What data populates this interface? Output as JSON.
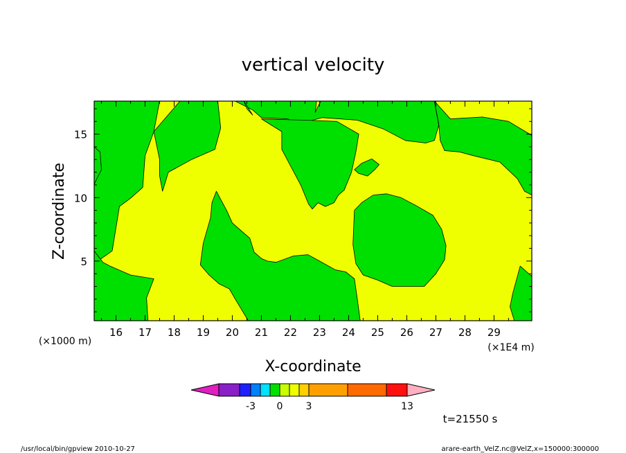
{
  "chart_data": {
    "type": "contour",
    "title": "vertical velocity",
    "xlabel": "X-coordinate",
    "ylabel": "Z-coordinate",
    "x_unit_left": "(×1000 m)",
    "x_unit_right": "(×1E4 m)",
    "xlim": [
      15.25,
      30.3
    ],
    "ylim": [
      0.3,
      17.6
    ],
    "x_ticks": [
      16,
      17,
      18,
      19,
      20,
      21,
      22,
      23,
      24,
      25,
      26,
      27,
      28,
      29
    ],
    "y_ticks": [
      5,
      10,
      15
    ],
    "time_label": "t=21550 s",
    "region_colors": {
      "negative": "#00e000",
      "positive": "#f0ff00"
    },
    "regions": [
      {
        "sign": "negative",
        "points": [
          [
            15.25,
            17.6
          ],
          [
            17.5,
            17.6
          ],
          [
            17.3,
            15.2
          ],
          [
            17.0,
            13.3
          ],
          [
            16.92,
            10.8
          ],
          [
            16.5,
            9.95
          ],
          [
            16.12,
            9.3
          ],
          [
            15.87,
            5.8
          ],
          [
            15.25,
            4.8
          ]
        ]
      },
      {
        "sign": "negative",
        "points": [
          [
            15.25,
            14.0
          ],
          [
            15.45,
            13.6
          ],
          [
            15.5,
            12.2
          ],
          [
            15.28,
            11.2
          ],
          [
            15.25,
            11.0
          ]
        ]
      },
      {
        "sign": "negative",
        "points": [
          [
            15.25,
            5.8
          ],
          [
            15.55,
            4.9
          ],
          [
            15.8,
            4.6
          ],
          [
            16.5,
            3.9
          ],
          [
            17.3,
            3.6
          ],
          [
            17.05,
            2.1
          ],
          [
            17.1,
            0.3
          ],
          [
            15.25,
            0.3
          ]
        ]
      },
      {
        "sign": "negative",
        "points": [
          [
            18.2,
            17.6
          ],
          [
            19.5,
            17.6
          ],
          [
            19.6,
            15.5
          ],
          [
            19.4,
            13.8
          ],
          [
            18.6,
            13.0
          ],
          [
            17.8,
            12.0
          ],
          [
            17.6,
            10.5
          ],
          [
            17.5,
            11.7
          ],
          [
            17.5,
            13.0
          ],
          [
            17.3,
            15.2
          ]
        ]
      },
      {
        "sign": "negative",
        "points": [
          [
            20.1,
            17.6
          ],
          [
            22.9,
            17.6
          ],
          [
            22.85,
            16.7
          ],
          [
            22.95,
            17.2
          ],
          [
            23.05,
            17.6
          ],
          [
            26.95,
            17.6
          ],
          [
            27.1,
            15.7
          ],
          [
            26.95,
            14.5
          ],
          [
            26.65,
            14.3
          ],
          [
            25.95,
            14.5
          ],
          [
            25.2,
            15.4
          ],
          [
            24.3,
            16.1
          ],
          [
            23.1,
            16.3
          ],
          [
            22.6,
            16.0
          ],
          [
            22.4,
            15.8
          ],
          [
            21.9,
            16.2
          ],
          [
            21.0,
            16.3
          ],
          [
            20.7,
            16.9
          ]
        ]
      },
      {
        "sign": "negative",
        "points": [
          [
            21.0,
            16.2
          ],
          [
            21.7,
            15.2
          ],
          [
            21.7,
            13.8
          ],
          [
            22.0,
            12.5
          ],
          [
            22.35,
            11.0
          ],
          [
            22.62,
            9.5
          ],
          [
            22.75,
            9.1
          ],
          [
            22.95,
            9.6
          ],
          [
            23.2,
            9.3
          ],
          [
            23.5,
            9.6
          ],
          [
            23.65,
            10.2
          ],
          [
            23.85,
            10.6
          ],
          [
            24.1,
            12.0
          ],
          [
            24.25,
            13.6
          ],
          [
            24.35,
            15.0
          ],
          [
            23.6,
            16.0
          ],
          [
            22.5,
            16.1
          ]
        ]
      },
      {
        "sign": "negative",
        "points": [
          [
            24.35,
            11.9
          ],
          [
            24.65,
            11.7
          ],
          [
            24.9,
            12.2
          ],
          [
            25.05,
            12.6
          ],
          [
            24.8,
            13.05
          ],
          [
            24.45,
            12.7
          ],
          [
            24.2,
            12.2
          ]
        ]
      },
      {
        "sign": "negative",
        "points": [
          [
            20.4,
            17.6
          ],
          [
            20.5,
            17.0
          ],
          [
            20.7,
            16.5
          ]
        ]
      },
      {
        "sign": "negative",
        "points": [
          [
            19.45,
            10.5
          ],
          [
            19.8,
            9.0
          ],
          [
            20.0,
            8.0
          ],
          [
            20.6,
            6.8
          ],
          [
            20.75,
            5.7
          ],
          [
            21.0,
            5.2
          ],
          [
            21.2,
            5.0
          ],
          [
            21.5,
            4.9
          ],
          [
            22.1,
            5.4
          ],
          [
            22.6,
            5.5
          ],
          [
            23.0,
            5.0
          ],
          [
            23.55,
            4.3
          ],
          [
            23.9,
            4.15
          ],
          [
            24.2,
            3.6
          ],
          [
            24.3,
            2.0
          ],
          [
            24.4,
            0.3
          ],
          [
            20.55,
            0.3
          ],
          [
            20.1,
            2.0
          ],
          [
            19.9,
            2.8
          ],
          [
            19.55,
            3.2
          ],
          [
            19.2,
            3.9
          ],
          [
            18.9,
            4.7
          ],
          [
            19.0,
            6.4
          ],
          [
            19.25,
            8.4
          ],
          [
            19.3,
            9.6
          ]
        ]
      },
      {
        "sign": "negative",
        "points": [
          [
            24.2,
            9.0
          ],
          [
            24.45,
            9.6
          ],
          [
            24.85,
            10.2
          ],
          [
            25.3,
            10.3
          ],
          [
            25.8,
            10.0
          ],
          [
            26.3,
            9.4
          ],
          [
            26.9,
            8.6
          ],
          [
            27.2,
            7.5
          ],
          [
            27.35,
            6.2
          ],
          [
            27.3,
            5.1
          ],
          [
            27.0,
            4.0
          ],
          [
            26.6,
            3.0
          ],
          [
            25.5,
            3.0
          ],
          [
            25.0,
            3.5
          ],
          [
            24.5,
            3.9
          ],
          [
            24.25,
            4.8
          ],
          [
            24.15,
            6.3
          ]
        ]
      },
      {
        "sign": "negative",
        "points": [
          [
            26.95,
            17.6
          ],
          [
            27.5,
            16.2
          ],
          [
            28.6,
            16.35
          ],
          [
            29.5,
            16.0
          ],
          [
            30.3,
            14.9
          ],
          [
            30.3,
            10.2
          ],
          [
            30.05,
            10.5
          ],
          [
            29.8,
            11.5
          ],
          [
            29.2,
            12.8
          ],
          [
            28.3,
            13.3
          ],
          [
            27.8,
            13.6
          ],
          [
            27.3,
            13.7
          ],
          [
            27.15,
            14.5
          ],
          [
            27.1,
            15.8
          ]
        ]
      },
      {
        "sign": "negative",
        "points": [
          [
            29.9,
            4.6
          ],
          [
            30.3,
            3.8
          ],
          [
            30.3,
            0.3
          ],
          [
            29.7,
            0.3
          ],
          [
            29.55,
            1.4
          ],
          [
            29.65,
            2.5
          ]
        ]
      }
    ],
    "colorbar": {
      "colors": [
        "#e020c0",
        "#8a20c8",
        "#2020ff",
        "#0080ff",
        "#00e0ff",
        "#00e000",
        "#c8ff00",
        "#f0ff00",
        "#ffd000",
        "#ffa000",
        "#ff6a00",
        "#ff1010",
        "#ff7070",
        "#ffb0c0"
      ],
      "tick_labels": [
        "-3",
        "0",
        "3",
        "13"
      ]
    },
    "footer_left": "/usr/local/bin/gpview   2010-10-27",
    "footer_right": "arare-earth_VelZ.nc@VelZ,x=150000:300000"
  }
}
